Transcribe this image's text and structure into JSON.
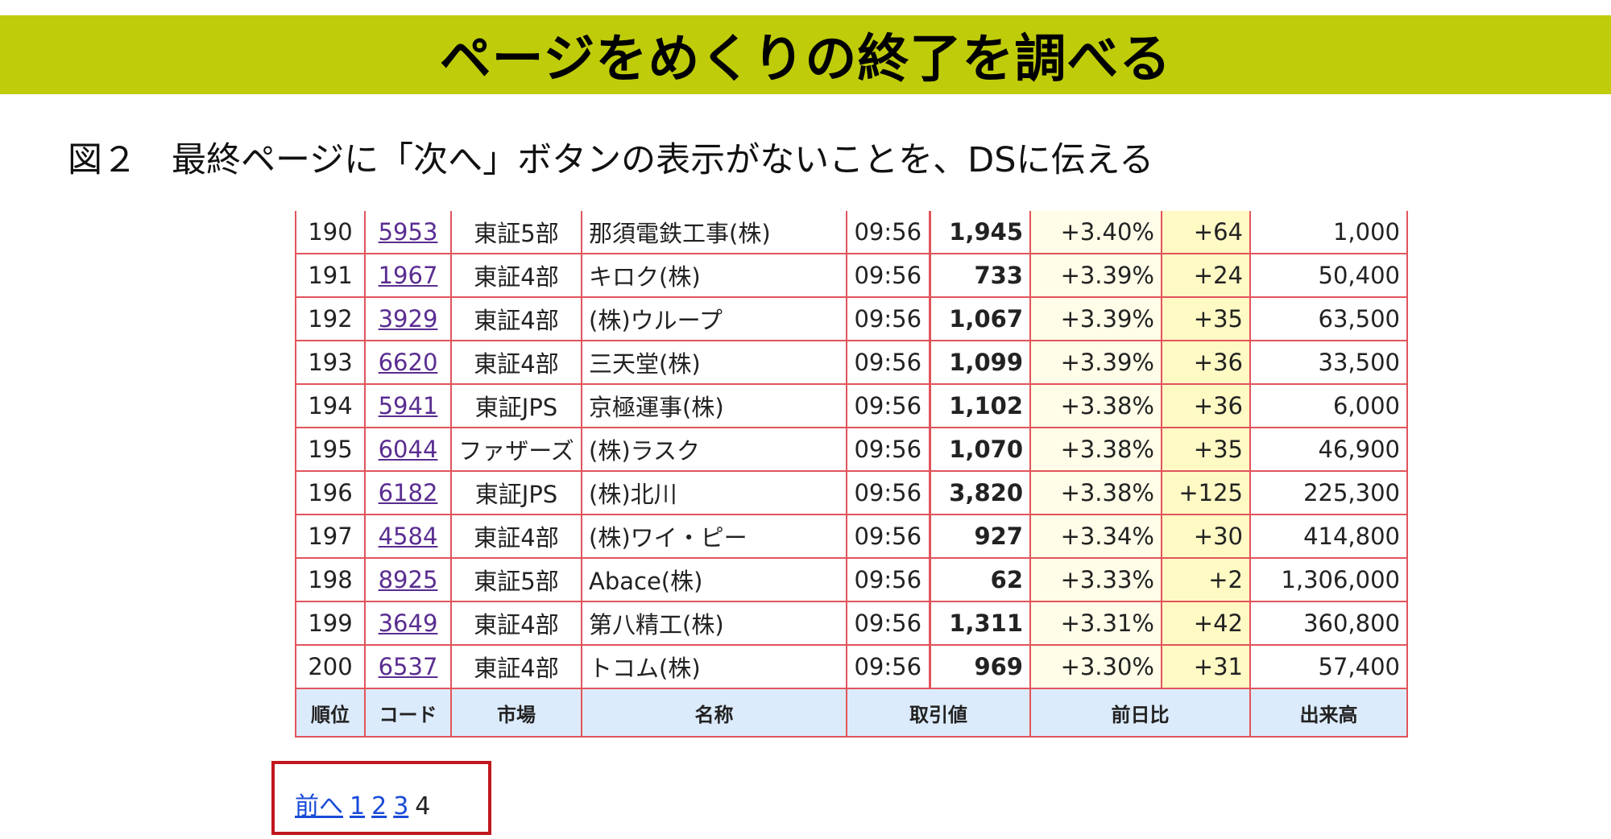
{
  "banner": {
    "title": "ページをめくりの終了を調べる"
  },
  "caption": "図２　最終ページに「次へ」ボタンの表示がないことを、DSに伝える",
  "table": {
    "headers": [
      "順位",
      "コード",
      "市場",
      "名称",
      "取引値",
      "前日比",
      "出来高"
    ],
    "rows": [
      {
        "rank": "190",
        "code": "5953",
        "market": "東証5部",
        "name": "那須電鉄工事(株)",
        "time": "09:56",
        "price": "1,945",
        "pct": "+3.40%",
        "chg": "+64",
        "vol": "1,000"
      },
      {
        "rank": "191",
        "code": "1967",
        "market": "東証4部",
        "name": "キロク(株)",
        "time": "09:56",
        "price": "733",
        "pct": "+3.39%",
        "chg": "+24",
        "vol": "50,400"
      },
      {
        "rank": "192",
        "code": "3929",
        "market": "東証4部",
        "name": "(株)ウループ",
        "time": "09:56",
        "price": "1,067",
        "pct": "+3.39%",
        "chg": "+35",
        "vol": "63,500"
      },
      {
        "rank": "193",
        "code": "6620",
        "market": "東証4部",
        "name": "三天堂(株)",
        "time": "09:56",
        "price": "1,099",
        "pct": "+3.39%",
        "chg": "+36",
        "vol": "33,500"
      },
      {
        "rank": "194",
        "code": "5941",
        "market": "東証JPS",
        "name": "京極運事(株)",
        "time": "09:56",
        "price": "1,102",
        "pct": "+3.38%",
        "chg": "+36",
        "vol": "6,000"
      },
      {
        "rank": "195",
        "code": "6044",
        "market": "ファザーズ",
        "name": "(株)ラスク",
        "time": "09:56",
        "price": "1,070",
        "pct": "+3.38%",
        "chg": "+35",
        "vol": "46,900"
      },
      {
        "rank": "196",
        "code": "6182",
        "market": "東証JPS",
        "name": "(株)北川",
        "time": "09:56",
        "price": "3,820",
        "pct": "+3.38%",
        "chg": "+125",
        "vol": "225,300"
      },
      {
        "rank": "197",
        "code": "4584",
        "market": "東証4部",
        "name": "(株)ワイ・ピー",
        "time": "09:56",
        "price": "927",
        "pct": "+3.34%",
        "chg": "+30",
        "vol": "414,800"
      },
      {
        "rank": "198",
        "code": "8925",
        "market": "東証5部",
        "name": "Abace(株)",
        "time": "09:56",
        "price": "62",
        "pct": "+3.33%",
        "chg": "+2",
        "vol": "1,306,000"
      },
      {
        "rank": "199",
        "code": "3649",
        "market": "東証4部",
        "name": "第八精工(株)",
        "time": "09:56",
        "price": "1,311",
        "pct": "+3.31%",
        "chg": "+42",
        "vol": "360,800"
      },
      {
        "rank": "200",
        "code": "6537",
        "market": "東証4部",
        "name": "トコム(株)",
        "time": "09:56",
        "price": "969",
        "pct": "+3.30%",
        "chg": "+31",
        "vol": "57,400"
      }
    ]
  },
  "pager": {
    "prev_label": "前へ",
    "pages": [
      "1",
      "2",
      "3"
    ],
    "current": "4"
  },
  "colors": {
    "banner": "#bfcc0a",
    "table_border": "#e2545b",
    "header_bg": "#dcebfb",
    "change_bg": "#fff9c4",
    "highlight_box": "#c0181e",
    "link": "#1a4bd8",
    "visited_link": "#5a2d91"
  }
}
